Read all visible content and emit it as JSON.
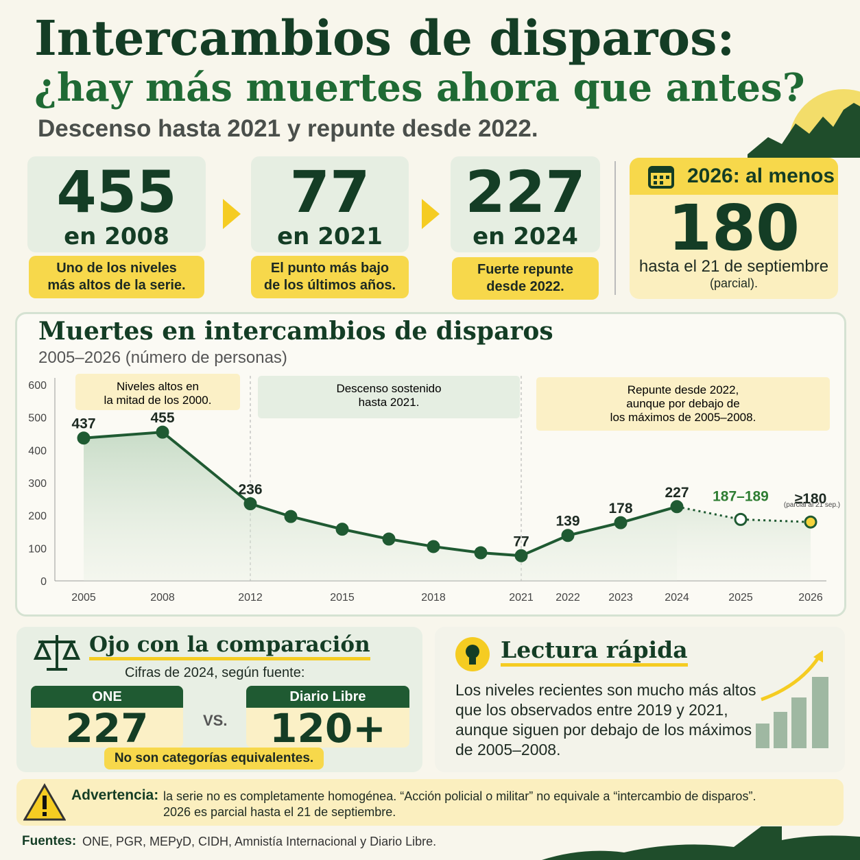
{
  "header": {
    "title": "Intercambios de disparos:",
    "subtitle": "¿hay más muertes ahora que antes?",
    "lead": "Descenso hasta 2021 y repunte desde 2022."
  },
  "kpis": [
    {
      "value": "455",
      "year": "en 2008",
      "note": "Uno de los niveles\nmás altos de la serie."
    },
    {
      "value": "77",
      "year": "en 2021",
      "note": "El punto más bajo\nde los últimos años."
    },
    {
      "value": "227",
      "year": "en 2024",
      "note": "Fuerte repunte\ndesde 2022."
    }
  ],
  "highlight": {
    "heading": "2026: al menos",
    "value": "180",
    "note": "hasta el 21 de septiembre",
    "note2": "(parcial)."
  },
  "chart_data": {
    "type": "line",
    "title": "Muertes en intercambios de disparos",
    "subtitle": "2005–2026 (número de personas)",
    "categories": [
      "2005",
      "2008",
      "2012",
      null,
      "2015",
      null,
      "2018",
      null,
      "2021",
      "2022",
      "2023",
      "2024",
      "2025",
      "2026"
    ],
    "series": [
      {
        "color": "#1f5a32",
        "values": [
          437,
          455,
          236,
          197,
          158,
          128,
          105,
          86,
          77,
          139,
          178,
          227,
          null,
          null
        ],
        "value_labels": [
          "437",
          "455",
          "236",
          null,
          null,
          null,
          null,
          null,
          "77",
          "139",
          "178",
          "227",
          null,
          null
        ]
      },
      {
        "color": "#1f5a32",
        "dashed": true,
        "values": [
          null,
          null,
          null,
          null,
          null,
          null,
          null,
          null,
          null,
          null,
          null,
          227,
          188,
          180
        ],
        "value_labels": [
          null,
          null,
          null,
          null,
          null,
          null,
          null,
          null,
          null,
          null,
          null,
          null,
          "187–189",
          "≥180"
        ],
        "marker_colors": [
          null,
          null,
          null,
          null,
          null,
          null,
          null,
          null,
          null,
          null,
          null,
          null,
          "#ffffff",
          "#f5d33c"
        ]
      }
    ],
    "point_note": "(parcial al 21 sep.)",
    "annotations": [
      {
        "text": "Niveles altos en\nla mitad de los 2000.",
        "color": "#fbf0c6"
      },
      {
        "text": "Descenso sostenido\nhasta 2021.",
        "color": "#e5eee2"
      },
      {
        "text": "Repunte desde 2022,\naunque por debajo de\nlos máximos de 2005–2008.",
        "color": "#fbf0c6"
      }
    ],
    "ylim": [
      0,
      600
    ],
    "yticks": [
      0,
      100,
      200,
      300,
      400,
      500,
      600
    ],
    "grid": false
  },
  "comparison": {
    "title": "Ojo con la comparación",
    "subtitle": "Cifras de 2024, según fuente:",
    "vs": "VS.",
    "sources": [
      {
        "name": "ONE",
        "value": "227"
      },
      {
        "name": "Diario Libre",
        "value": "120+"
      }
    ],
    "note": "No son categorías equivalentes."
  },
  "quick_read": {
    "title": "Lectura rápida",
    "text": "Los niveles recientes son mucho más altos\nque los observados entre 2019 y 2021,\naunque siguen por debajo de los máximos\nde 2005–2008."
  },
  "warning": {
    "label": "Advertencia:",
    "text": "la serie no es completamente homogénea. “Acción policial o militar” no equivale a “intercambio de disparos”.",
    "text2": "2026 es parcial hasta el 21 de septiembre."
  },
  "sources": {
    "label": "Fuentes:",
    "text": "ONE, PGR, MEPyD, CIDH, Amnistía Internacional y Diario Libre."
  }
}
